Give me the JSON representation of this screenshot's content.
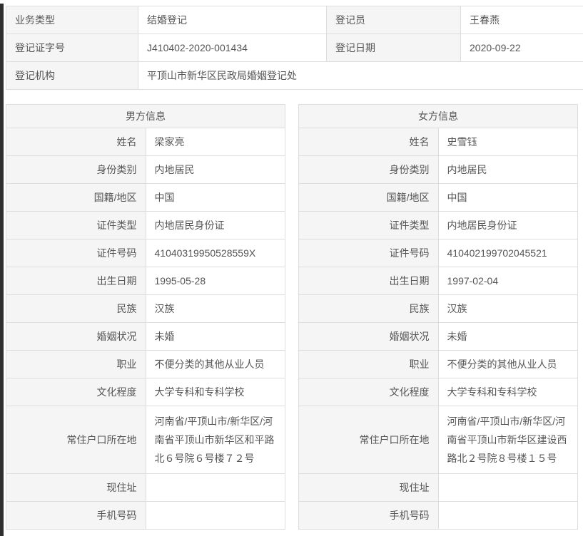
{
  "colors": {
    "label_bg": "#f5f5f5",
    "border": "#dddddd",
    "text": "#555555",
    "window_edge": "#2f2f2f"
  },
  "registration": {
    "rows": [
      {
        "l1": "业务类型",
        "v1": "结婚登记",
        "l2": "登记员",
        "v2": "王春燕"
      },
      {
        "l1": "登记证字号",
        "v1": "J410402-2020-001434",
        "l2": "登记日期",
        "v2": "2020-09-22"
      },
      {
        "l1": "登记机构",
        "v1": "平顶山市新华区民政局婚姻登记处"
      }
    ]
  },
  "male": {
    "title": "男方信息",
    "rows": [
      {
        "label": "姓名",
        "value": "梁家亮"
      },
      {
        "label": "身份类别",
        "value": "内地居民"
      },
      {
        "label": "国籍/地区",
        "value": "中国"
      },
      {
        "label": "证件类型",
        "value": "内地居民身份证"
      },
      {
        "label": "证件号码",
        "value": "41040319950528559X"
      },
      {
        "label": "出生日期",
        "value": "1995-05-28"
      },
      {
        "label": "民族",
        "value": "汉族"
      },
      {
        "label": "婚姻状况",
        "value": "未婚"
      },
      {
        "label": "职业",
        "value": "不便分类的其他从业人员"
      },
      {
        "label": "文化程度",
        "value": "大学专科和专科学校"
      },
      {
        "label": "常住户口所在地",
        "value": "河南省/平顶山市/新华区/河南省平顶山市新华区和平路北６号院６号楼７２号"
      },
      {
        "label": "现住址",
        "value": ""
      },
      {
        "label": "手机号码",
        "value": ""
      }
    ]
  },
  "female": {
    "title": "女方信息",
    "rows": [
      {
        "label": "姓名",
        "value": "史雪钰"
      },
      {
        "label": "身份类别",
        "value": "内地居民"
      },
      {
        "label": "国籍/地区",
        "value": "中国"
      },
      {
        "label": "证件类型",
        "value": "内地居民身份证"
      },
      {
        "label": "证件号码",
        "value": "410402199702045521"
      },
      {
        "label": "出生日期",
        "value": "1997-02-04"
      },
      {
        "label": "民族",
        "value": "汉族"
      },
      {
        "label": "婚姻状况",
        "value": "未婚"
      },
      {
        "label": "职业",
        "value": "不便分类的其他从业人员"
      },
      {
        "label": "文化程度",
        "value": "大学专科和专科学校"
      },
      {
        "label": "常住户口所在地",
        "value": "河南省/平顶山市/新华区/河南省平顶山市新华区建设西路北２号院８号楼１５号"
      },
      {
        "label": "现住址",
        "value": ""
      },
      {
        "label": "手机号码",
        "value": ""
      }
    ]
  }
}
